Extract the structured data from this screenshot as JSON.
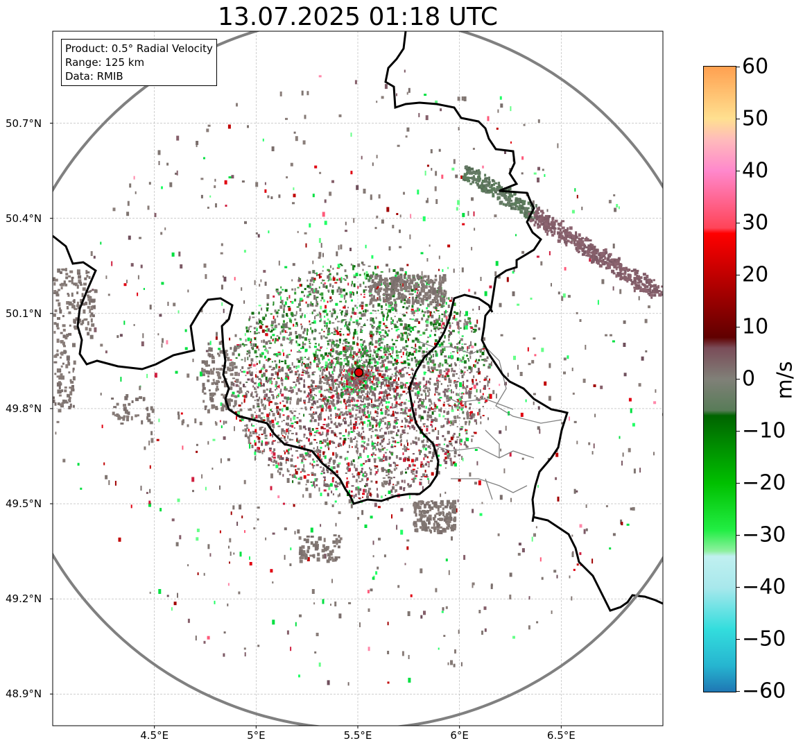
{
  "title": "13.07.2025 01:18 UTC",
  "info": {
    "product": "Product: 0.5° Radial Velocity",
    "range": "Range: 125 km",
    "data": "Data: RMIB"
  },
  "map": {
    "lon_range": [
      4.0,
      7.0
    ],
    "lat_range": [
      48.8,
      50.99
    ],
    "lat_ticks": [
      {
        "value": 50.7,
        "label": "50.7°N"
      },
      {
        "value": 50.4,
        "label": "50.4°N"
      },
      {
        "value": 50.1,
        "label": "50.1°N"
      },
      {
        "value": 49.8,
        "label": "49.8°N"
      },
      {
        "value": 49.5,
        "label": "49.5°N"
      },
      {
        "value": 49.2,
        "label": "49.2°N"
      },
      {
        "value": 48.9,
        "label": "48.9°N"
      }
    ],
    "lon_ticks": [
      {
        "value": 4.5,
        "label": "4.5°E"
      },
      {
        "value": 5.0,
        "label": "5°E"
      },
      {
        "value": 5.5,
        "label": "5.5°E"
      },
      {
        "value": 6.0,
        "label": "6°E"
      },
      {
        "value": 6.5,
        "label": "6.5°E"
      }
    ],
    "radar_site": {
      "lon": 5.505,
      "lat": 49.914
    },
    "range_km": 125,
    "grid": true
  },
  "colorbar": {
    "unit": "m/s",
    "min": -60,
    "max": 60,
    "ticks": [
      {
        "value": 60,
        "label": "60"
      },
      {
        "value": 50,
        "label": "50"
      },
      {
        "value": 40,
        "label": "40"
      },
      {
        "value": 30,
        "label": "30"
      },
      {
        "value": 20,
        "label": "20"
      },
      {
        "value": 10,
        "label": "10"
      },
      {
        "value": 0,
        "label": "0"
      },
      {
        "value": -10,
        "label": "−10"
      },
      {
        "value": -20,
        "label": "−20"
      },
      {
        "value": -30,
        "label": "−30"
      },
      {
        "value": -40,
        "label": "−40"
      },
      {
        "value": -50,
        "label": "−50"
      },
      {
        "value": -60,
        "label": "−60"
      }
    ],
    "stops": [
      {
        "v": -60,
        "c": "#1f77b4"
      },
      {
        "v": -55,
        "c": "#26b5d0"
      },
      {
        "v": -48,
        "c": "#33dddd"
      },
      {
        "v": -40,
        "c": "#a8e8ec"
      },
      {
        "v": -34,
        "c": "#c0f0f0"
      },
      {
        "v": -33,
        "c": "#8ef0a0"
      },
      {
        "v": -29,
        "c": "#22ee44"
      },
      {
        "v": -20,
        "c": "#00c000"
      },
      {
        "v": -7,
        "c": "#006400"
      },
      {
        "v": -6,
        "c": "#587c58"
      },
      {
        "v": 0,
        "c": "#808078"
      },
      {
        "v": 6,
        "c": "#7a4c58"
      },
      {
        "v": 8,
        "c": "#600000"
      },
      {
        "v": 20,
        "c": "#c00000"
      },
      {
        "v": 28,
        "c": "#ff0000"
      },
      {
        "v": 29,
        "c": "#ff4458"
      },
      {
        "v": 40,
        "c": "#ff88cc"
      },
      {
        "v": 46,
        "c": "#ffbbbb"
      },
      {
        "v": 50,
        "c": "#ffe090"
      },
      {
        "v": 60,
        "c": "#ffa050"
      }
    ]
  },
  "colors": {
    "border": "#000000",
    "province_border": "#808080",
    "range_ring": "#808080",
    "radar_marker": "#e00000"
  }
}
